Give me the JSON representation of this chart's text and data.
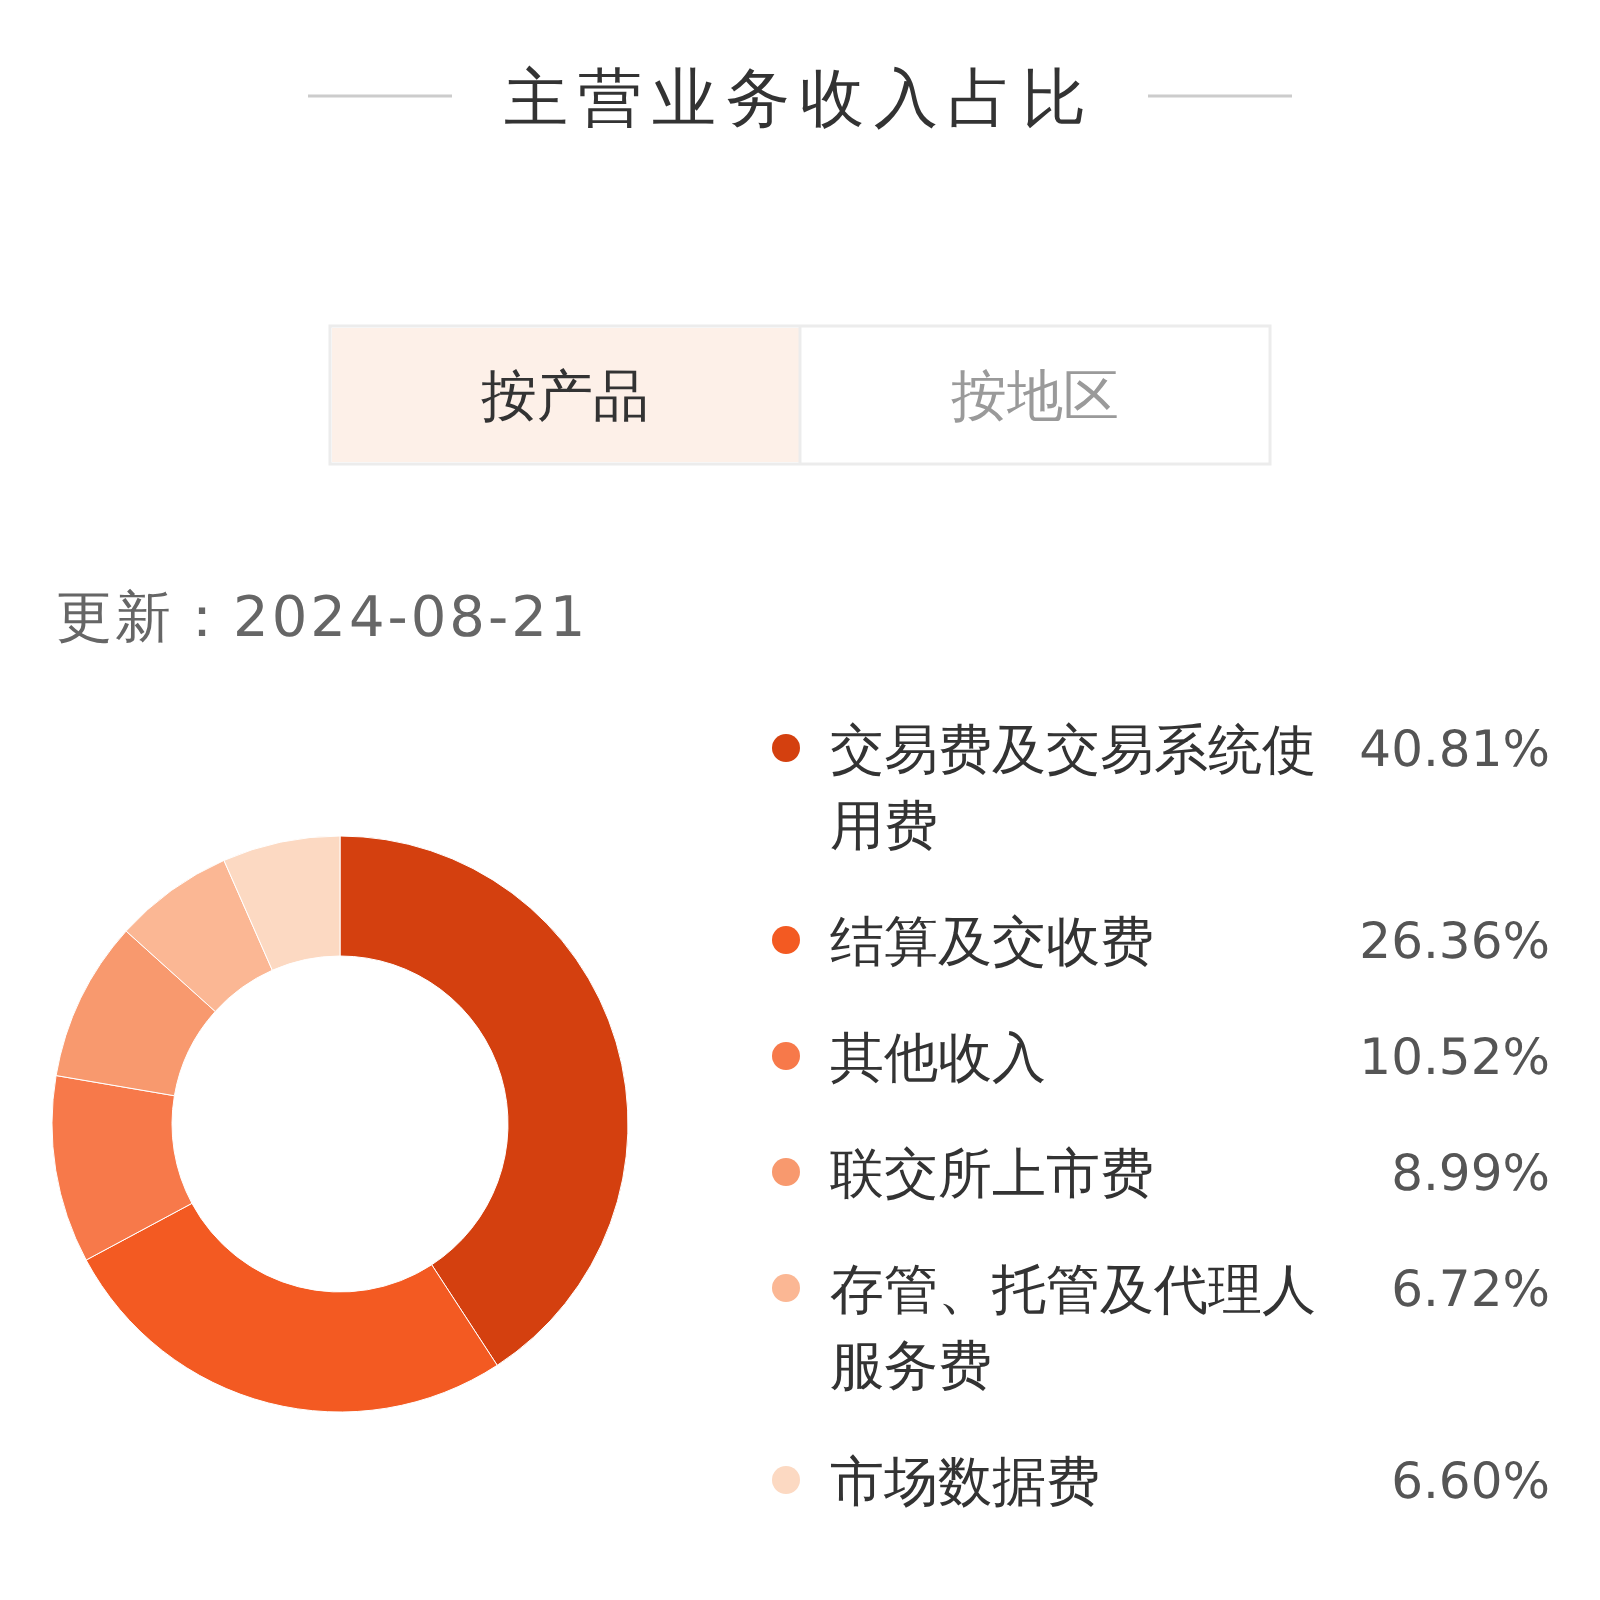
{
  "chart_data": {
    "type": "donut",
    "title": "主营业务收入占比",
    "subtitle": "更新：2024-08-21",
    "annotations": [
      "按产品",
      "按地区"
    ],
    "categories": [
      "交易费及交易系统使用费",
      "结算及交收费",
      "其他收入",
      "联交所上市费",
      "存管、托管及代理人服务费",
      "市场数据费"
    ],
    "values": [
      40.81,
      26.36,
      10.52,
      8.99,
      6.72,
      6.6
    ],
    "value_labels": [
      "40.81%",
      "26.36%",
      "10.52%",
      "8.99%",
      "6.72%",
      "6.60%"
    ],
    "colors": [
      "#d4400f",
      "#f35a22",
      "#f7794a",
      "#f8996e",
      "#fbb794",
      "#fcd9c2"
    ],
    "legend": "right"
  }
}
